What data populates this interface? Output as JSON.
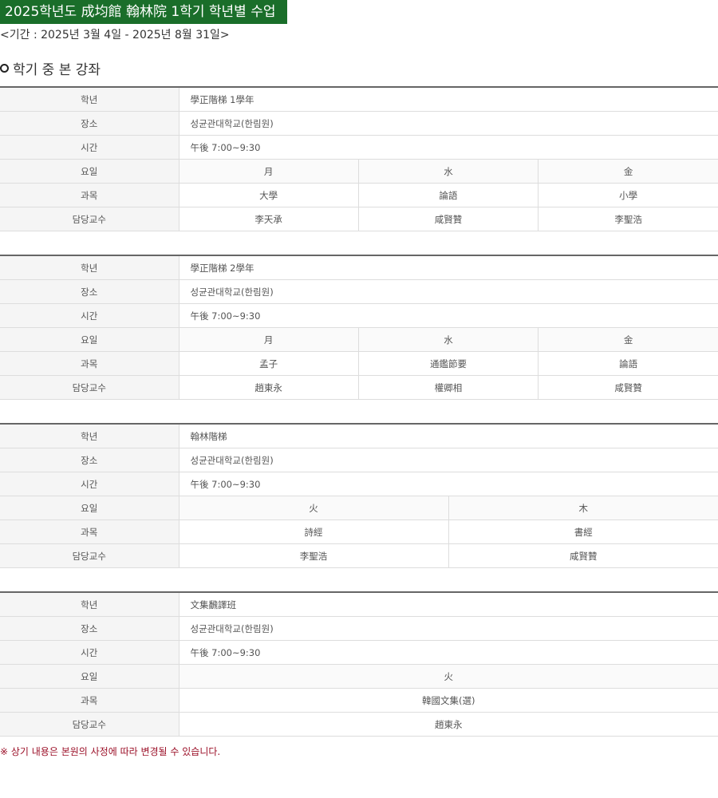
{
  "header": {
    "title": "2025학년도 成均館 翰林院 1학기 학년별 수업",
    "period": "<기간 : 2025년 3월 4일 - 2025년 8월 31일>",
    "section_title": "학기 중 본 강좌"
  },
  "labels": {
    "grade": "학년",
    "place": "장소",
    "time": "시간",
    "day": "요일",
    "subject": "과목",
    "professor": "담당교수"
  },
  "classes": [
    {
      "grade": "學正階梯 1學年",
      "place": "성균관대학교(한림원)",
      "time": "午後 7:00~9:30",
      "days": [
        "月",
        "水",
        "金"
      ],
      "subjects": [
        "大學",
        "論語",
        "小學"
      ],
      "professors": [
        "李天承",
        "咸賢贊",
        "李聖浩"
      ]
    },
    {
      "grade": "學正階梯 2學年",
      "place": "성균관대학교(한림원)",
      "time": "午後 7:00~9:30",
      "days": [
        "月",
        "水",
        "金"
      ],
      "subjects": [
        "孟子",
        "通鑑節要",
        "論語"
      ],
      "professors": [
        "趙東永",
        "權卿相",
        "咸賢贊"
      ]
    },
    {
      "grade": "翰林階梯",
      "place": "성균관대학교(한림원)",
      "time": "午後 7:00~9:30",
      "days": [
        "火",
        "木"
      ],
      "subjects": [
        "詩經",
        "書經"
      ],
      "professors": [
        "李聖浩",
        "咸賢贊"
      ]
    },
    {
      "grade": "文集飜譯班",
      "place": "성균관대학교(한림원)",
      "time": "午後 7:00~9:30",
      "days": [
        "火"
      ],
      "subjects": [
        "韓國文集(選)"
      ],
      "professors": [
        "趙東永"
      ]
    }
  ],
  "note": "※ 상기 내용은 본원의 사정에 따라 변경될 수 있습니다.",
  "colors": {
    "title_bg": "#1a6e2a",
    "note": "#9b1028"
  }
}
